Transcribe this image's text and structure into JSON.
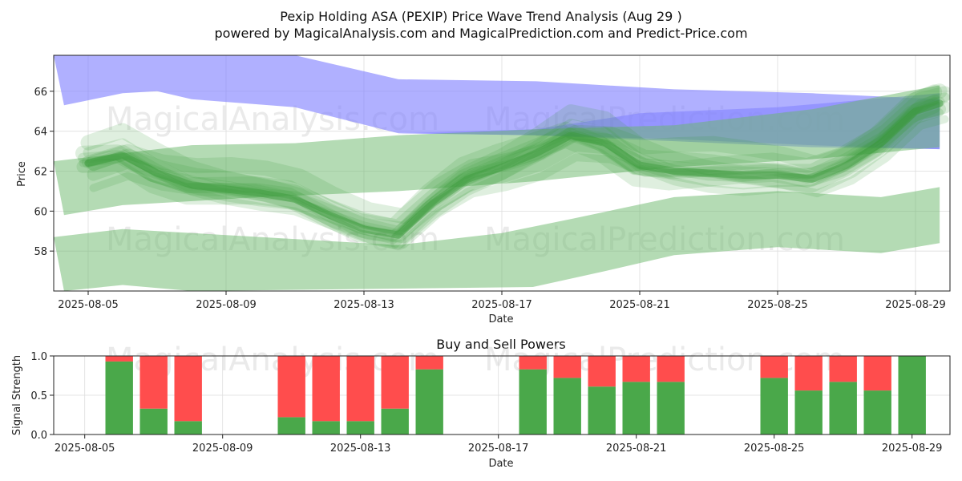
{
  "title": "Pexip Holding ASA (PEXIP) Price Wave Trend Analysis (Aug 29 )",
  "subtitle": "powered by MagicalAnalysis.com and MagicalPrediction.com and Predict-Price.com",
  "watermarks": [
    "MagicalAnalysis.com",
    "MagicalPrediction.com"
  ],
  "colors": {
    "blue_band": "#7f7fff",
    "green_band": "#6ab86a",
    "green_wave": "#3a9a3a",
    "buy": "#4aa84a",
    "sell": "#ff4d4d"
  },
  "chart_data": [
    {
      "type": "area",
      "title": "",
      "xlabel": "Date",
      "ylabel": "Price",
      "xlim": [
        "2025-08-04",
        "2025-08-30"
      ],
      "ylim": [
        56.0,
        67.8
      ],
      "x_ticks": [
        "2025-08-05",
        "2025-08-09",
        "2025-08-13",
        "2025-08-17",
        "2025-08-21",
        "2025-08-25",
        "2025-08-29"
      ],
      "y_ticks": [
        58,
        60,
        62,
        64,
        66
      ],
      "grid": true,
      "bands": [
        {
          "color": "blue",
          "upper": [
            [
              "2025-08-04",
              67.8
            ],
            [
              "2025-08-06",
              67.9
            ],
            [
              "2025-08-11",
              67.8
            ],
            [
              "2025-08-14",
              66.6
            ],
            [
              "2025-08-18",
              66.5
            ],
            [
              "2025-08-22",
              66.1
            ],
            [
              "2025-08-26",
              65.9
            ],
            [
              "2025-08-29.7",
              65.6
            ]
          ],
          "lower": [
            [
              "2025-08-04.3",
              65.3
            ],
            [
              "2025-08-06",
              65.9
            ],
            [
              "2025-08-07",
              66.0
            ],
            [
              "2025-08-08",
              65.6
            ],
            [
              "2025-08-11",
              65.2
            ],
            [
              "2025-08-14",
              63.9
            ],
            [
              "2025-08-18",
              63.8
            ],
            [
              "2025-08-22",
              63.6
            ],
            [
              "2025-08-26",
              63.3
            ],
            [
              "2025-08-29.7",
              63.1
            ]
          ]
        },
        {
          "color": "blue",
          "upper": [
            [
              "2025-08-14",
              63.9
            ],
            [
              "2025-08-18",
              64.1
            ],
            [
              "2025-08-21",
              64.9
            ],
            [
              "2025-08-25",
              65.2
            ],
            [
              "2025-08-29.7",
              65.9
            ]
          ],
          "lower": [
            [
              "2025-08-14",
              63.9
            ],
            [
              "2025-08-18",
              63.8
            ],
            [
              "2025-08-22",
              63.5
            ],
            [
              "2025-08-26",
              63.2
            ],
            [
              "2025-08-29.7",
              63.1
            ]
          ]
        },
        {
          "color": "green",
          "upper": [
            [
              "2025-08-04",
              62.5
            ],
            [
              "2025-08-08",
              63.3
            ],
            [
              "2025-08-11",
              63.4
            ],
            [
              "2025-08-14",
              63.8
            ],
            [
              "2025-08-18",
              64.1
            ],
            [
              "2025-08-22",
              64.3
            ],
            [
              "2025-08-26",
              65.1
            ],
            [
              "2025-08-29.7",
              66.3
            ]
          ],
          "lower": [
            [
              "2025-08-04.3",
              59.8
            ],
            [
              "2025-08-06",
              60.3
            ],
            [
              "2025-08-10",
              60.7
            ],
            [
              "2025-08-14",
              61.0
            ],
            [
              "2025-08-18",
              61.5
            ],
            [
              "2025-08-22",
              62.2
            ],
            [
              "2025-08-26",
              62.6
            ],
            [
              "2025-08-29.7",
              63.2
            ]
          ]
        },
        {
          "color": "green",
          "upper": [
            [
              "2025-08-04",
              58.7
            ],
            [
              "2025-08-06",
              59.1
            ],
            [
              "2025-08-09",
              58.8
            ],
            [
              "2025-08-14",
              58.3
            ],
            [
              "2025-08-17",
              58.9
            ],
            [
              "2025-08-19",
              59.6
            ],
            [
              "2025-08-22",
              60.7
            ],
            [
              "2025-08-25",
              61.0
            ],
            [
              "2025-08-28",
              60.7
            ],
            [
              "2025-08-29.7",
              61.2
            ]
          ],
          "lower": [
            [
              "2025-08-04.3",
              56.0
            ],
            [
              "2025-08-06",
              56.3
            ],
            [
              "2025-08-08",
              56.0
            ],
            [
              "2025-08-17.9",
              56.2
            ],
            [
              "2025-08-20",
              57.0
            ],
            [
              "2025-08-22",
              57.8
            ],
            [
              "2025-08-25",
              58.2
            ],
            [
              "2025-08-28",
              57.9
            ],
            [
              "2025-08-29.7",
              58.4
            ]
          ]
        }
      ],
      "wave_center": [
        [
          "2025-08-05",
          62.4
        ],
        [
          "2025-08-06",
          62.8
        ],
        [
          "2025-08-07",
          61.9
        ],
        [
          "2025-08-08",
          61.3
        ],
        [
          "2025-08-09",
          61.1
        ],
        [
          "2025-08-10",
          60.9
        ],
        [
          "2025-08-11",
          60.6
        ],
        [
          "2025-08-12",
          59.8
        ],
        [
          "2025-08-13",
          59.1
        ],
        [
          "2025-08-14",
          58.8
        ],
        [
          "2025-08-15",
          60.4
        ],
        [
          "2025-08-16",
          61.6
        ],
        [
          "2025-08-17",
          62.2
        ],
        [
          "2025-08-18",
          62.9
        ],
        [
          "2025-08-19",
          63.8
        ],
        [
          "2025-08-20",
          63.4
        ],
        [
          "2025-08-21",
          62.3
        ],
        [
          "2025-08-22",
          62.0
        ],
        [
          "2025-08-23",
          61.9
        ],
        [
          "2025-08-24",
          61.8
        ],
        [
          "2025-08-25",
          61.8
        ],
        [
          "2025-08-26",
          61.6
        ],
        [
          "2025-08-27",
          62.3
        ],
        [
          "2025-08-28",
          63.4
        ],
        [
          "2025-08-29",
          65.0
        ],
        [
          "2025-08-29.7",
          65.4
        ]
      ]
    },
    {
      "type": "bar",
      "title": "Buy and Sell Powers",
      "xlabel": "Date",
      "ylabel": "Signal Strength",
      "xlim": [
        "2025-08-04.1",
        "2025-08-30.1"
      ],
      "ylim": [
        0,
        1.0
      ],
      "x_ticks": [
        "2025-08-05",
        "2025-08-09",
        "2025-08-13",
        "2025-08-17",
        "2025-08-21",
        "2025-08-25",
        "2025-08-29"
      ],
      "y_ticks": [
        0.0,
        0.5,
        1.0
      ],
      "grid": true,
      "stacked": true,
      "categories": [
        "2025-08-06",
        "2025-08-07",
        "2025-08-08",
        "2025-08-11",
        "2025-08-12",
        "2025-08-13",
        "2025-08-14",
        "2025-08-15",
        "2025-08-18",
        "2025-08-19",
        "2025-08-20",
        "2025-08-21",
        "2025-08-22",
        "2025-08-25",
        "2025-08-26",
        "2025-08-27",
        "2025-08-28",
        "2025-08-29"
      ],
      "series": [
        {
          "values": [
            0.93,
            0.33,
            0.17,
            0.22,
            0.17,
            0.17,
            0.33,
            0.83,
            0.83,
            0.72,
            0.61,
            0.67,
            0.67,
            0.72,
            0.56,
            0.67,
            0.56,
            1.0
          ]
        },
        {
          "values": [
            0.07,
            0.67,
            0.83,
            0.78,
            0.83,
            0.83,
            0.67,
            0.17,
            0.17,
            0.28,
            0.39,
            0.33,
            0.33,
            0.28,
            0.44,
            0.33,
            0.44,
            0.0
          ]
        }
      ]
    }
  ]
}
